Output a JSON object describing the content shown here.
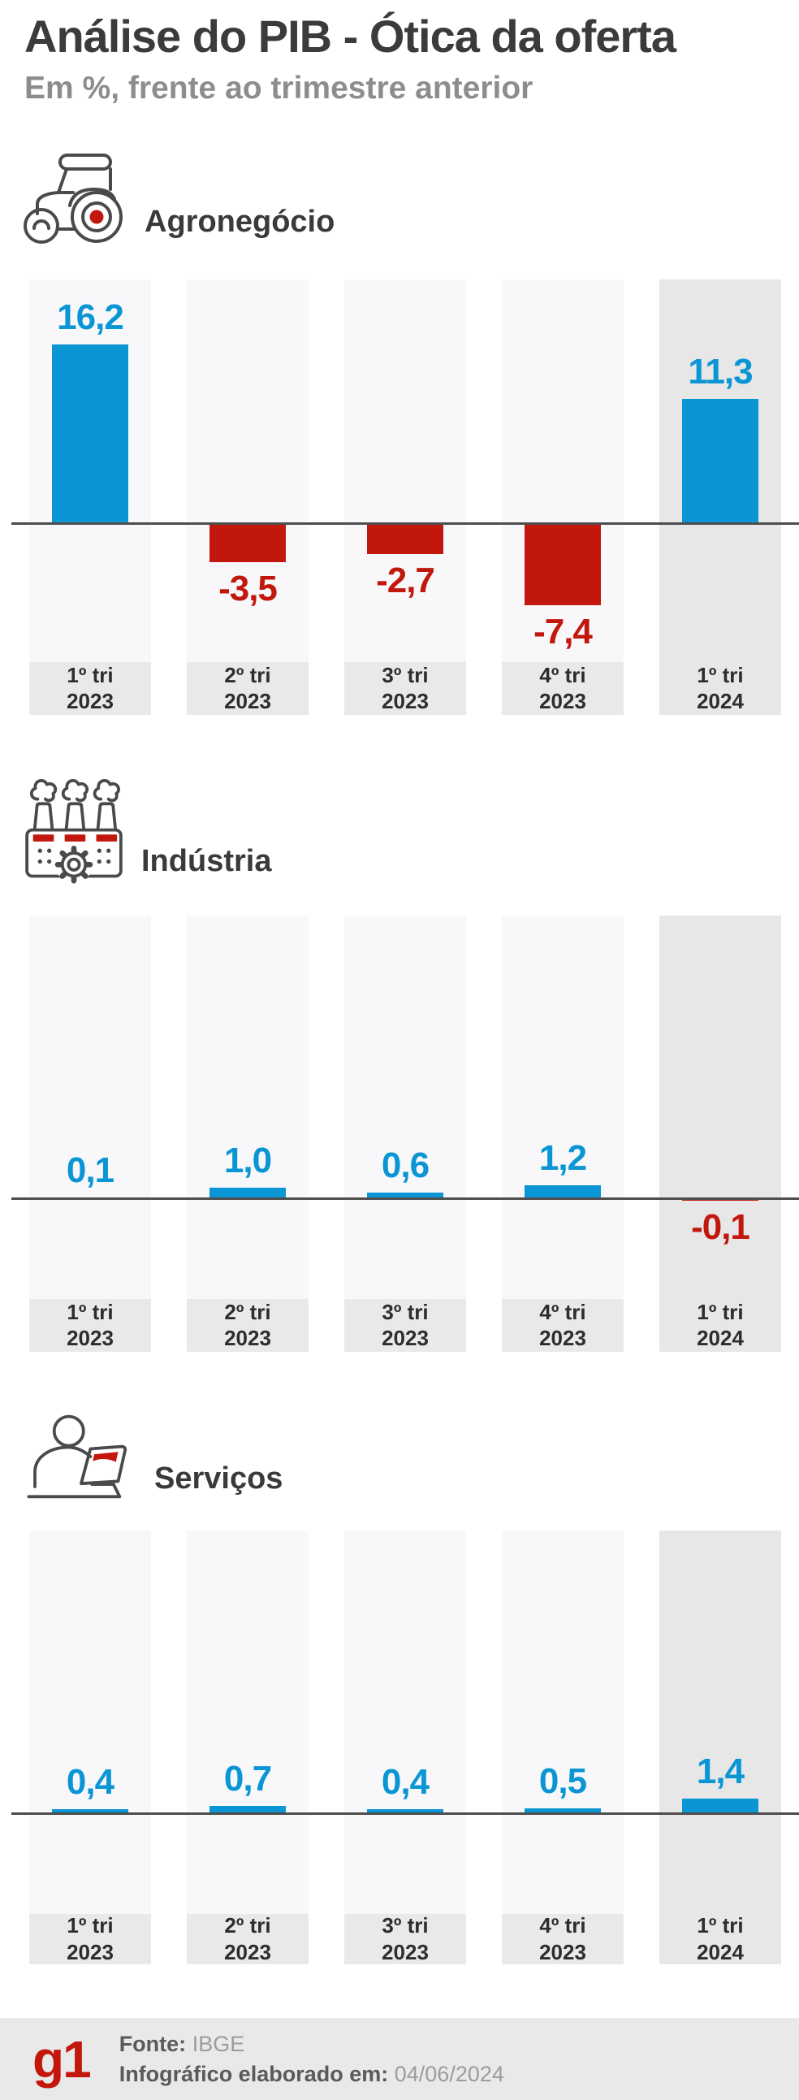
{
  "header": {
    "title": "Análise do PIB - Ótica da oferta",
    "subtitle": "Em %, frente ao trimestre anterior"
  },
  "sections": [
    {
      "label": "Agronegócio",
      "icon": "tractor-icon"
    },
    {
      "label": "Indústria",
      "icon": "factory-icon"
    },
    {
      "label": "Serviços",
      "icon": "person-laptop-icon"
    }
  ],
  "axis": {
    "quarters": [
      "1º tri",
      "2º tri",
      "3º tri",
      "4º tri",
      "1º tri"
    ],
    "years": [
      "2023",
      "2023",
      "2023",
      "2023",
      "2024"
    ]
  },
  "colors": {
    "positive_bar": "#0a96d4",
    "negative_bar": "#c2170d",
    "column_bg": "#f8f8fa",
    "column_bg_highlight": "#e7e7e7",
    "label_box_bg": "#e9e9e9",
    "axis_line": "#4d4d4d",
    "g1_red": "#c4170c"
  },
  "chart_data": [
    {
      "type": "bar",
      "title": "Agronegócio",
      "unit": "%",
      "categories": [
        "1º tri 2023",
        "2º tri 2023",
        "3º tri 2023",
        "4º tri 2023",
        "1º tri 2024"
      ],
      "values": [
        16.2,
        -3.5,
        -2.7,
        -7.4,
        11.3
      ],
      "value_labels": [
        "16,2",
        "-3,5",
        "-2,7",
        "-7,4",
        "11,3"
      ],
      "baseline": 0,
      "ylim": [
        -12.5,
        22
      ],
      "grid": false,
      "legend": false,
      "highlight_category": "1º tri 2024"
    },
    {
      "type": "bar",
      "title": "Indústria",
      "unit": "%",
      "categories": [
        "1º tri 2023",
        "2º tri 2023",
        "3º tri 2023",
        "4º tri 2023",
        "1º tri 2024"
      ],
      "values": [
        0.1,
        1.0,
        0.6,
        1.2,
        -0.1
      ],
      "value_labels": [
        "0,1",
        "1,0",
        "0,6",
        "1,2",
        "-0,1"
      ],
      "baseline": 0,
      "ylim": [
        -9,
        25.5
      ],
      "grid": false,
      "legend": false,
      "highlight_category": "1º tri 2024"
    },
    {
      "type": "bar",
      "title": "Serviços",
      "unit": "%",
      "categories": [
        "1º tri 2023",
        "2º tri 2023",
        "3º tri 2023",
        "4º tri 2023",
        "1º tri 2024"
      ],
      "values": [
        0.4,
        0.7,
        0.4,
        0.5,
        1.4
      ],
      "value_labels": [
        "0,4",
        "0,7",
        "0,4",
        "0,5",
        "1,4"
      ],
      "baseline": 0,
      "ylim": [
        -9,
        25.5
      ],
      "grid": false,
      "legend": false,
      "highlight_category": "1º tri 2024"
    }
  ],
  "footer": {
    "logo": "g1",
    "source_label": "Fonte:",
    "source_value": "IBGE",
    "info_label": "Infográfico elaborado em:",
    "info_value": "04/06/2024"
  }
}
